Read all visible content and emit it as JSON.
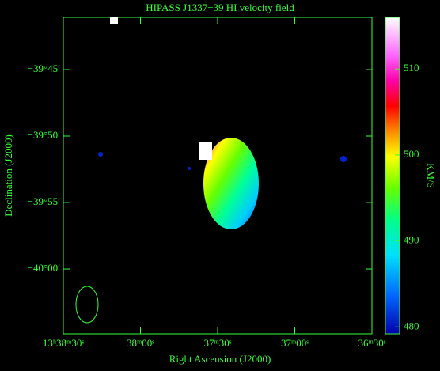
{
  "chart_data": {
    "type": "image",
    "title": "HIPASS J1337−39   HI velocity field",
    "xlabel": "Right Ascension (J2000)",
    "ylabel": "Declination (J2000)",
    "xlim": [
      2310,
      2190
    ],
    "xticks": [
      {
        "value": 2310,
        "label": "13ʰ38ᵐ30ˢ"
      },
      {
        "value": 2280,
        "label": "38ᵐ00ˢ"
      },
      {
        "value": 2250,
        "label": "37ᵐ30ˢ"
      },
      {
        "value": 2220,
        "label": "37ᵐ00ˢ"
      },
      {
        "value": 2190,
        "label": "36ᵐ30ˢ"
      }
    ],
    "ylim": [
      -40.0813,
      -39.6845
    ],
    "yticks": [
      {
        "value": -39.75,
        "label": "−39°45′"
      },
      {
        "value": -39.8333,
        "label": "−39°50′"
      },
      {
        "value": -39.9167,
        "label": "−39°55′"
      },
      {
        "value": -40.0,
        "label": "−40°00′"
      }
    ],
    "colorbar_label": "KM/S",
    "clim": [
      479.2,
      516
    ],
    "cticks": [
      480,
      490,
      500,
      510
    ],
    "color": "#33ff33"
  }
}
